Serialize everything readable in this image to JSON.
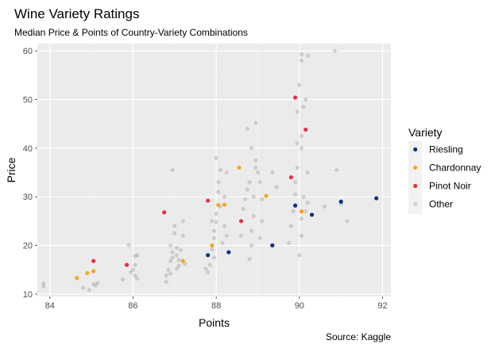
{
  "chart_data": {
    "type": "scatter",
    "title": "Wine Variety Ratings",
    "subtitle": "Median Price & Points of Country-Variety Combinations",
    "xlabel": "Points",
    "ylabel": "Price",
    "caption": "Source: Kaggle",
    "xlim": [
      83.7,
      92.2
    ],
    "ylim": [
      9.5,
      61.5
    ],
    "x_ticks": [
      84,
      86,
      88,
      90,
      92
    ],
    "y_ticks": [
      10,
      20,
      30,
      40,
      50,
      60
    ],
    "grid": true,
    "legend": {
      "title": "Variety",
      "position": "right"
    },
    "series": [
      {
        "name": "Riesling",
        "color": "#00338d",
        "points": [
          [
            87.8,
            18
          ],
          [
            88.3,
            18.6
          ],
          [
            89.35,
            20
          ],
          [
            89.9,
            28.2
          ],
          [
            90.3,
            26.3
          ],
          [
            91.0,
            29
          ],
          [
            91.85,
            29.7
          ]
        ]
      },
      {
        "name": "Chardonnay",
        "color": "#f5a623",
        "points": [
          [
            84.65,
            13.3
          ],
          [
            84.9,
            14.3
          ],
          [
            85.05,
            14.7
          ],
          [
            87.2,
            16.8
          ],
          [
            87.9,
            20
          ],
          [
            88.05,
            28.3
          ],
          [
            88.2,
            28.4
          ],
          [
            88.55,
            36
          ],
          [
            89.2,
            30.2
          ],
          [
            90.05,
            27
          ]
        ]
      },
      {
        "name": "Pinot Noir",
        "color": "#e8303f",
        "points": [
          [
            85.05,
            16.8
          ],
          [
            85.85,
            16
          ],
          [
            86.75,
            26.8
          ],
          [
            87.8,
            29.2
          ],
          [
            88.6,
            25
          ],
          [
            89.8,
            34
          ],
          [
            89.9,
            50.4
          ],
          [
            90.15,
            43.8
          ]
        ]
      },
      {
        "name": "Other",
        "color": "#a6a6a6",
        "points": [
          [
            83.85,
            12.2
          ],
          [
            83.85,
            11.6
          ],
          [
            84.8,
            11.3
          ],
          [
            84.95,
            10.8
          ],
          [
            85.05,
            12.0
          ],
          [
            85.1,
            11.8
          ],
          [
            85.15,
            12.3
          ],
          [
            85.75,
            13.0
          ],
          [
            85.9,
            20.1
          ],
          [
            85.95,
            14.5
          ],
          [
            86.0,
            15.0
          ],
          [
            86.05,
            17.8
          ],
          [
            86.05,
            13.8
          ],
          [
            86.1,
            18.0
          ],
          [
            86.05,
            16.0
          ],
          [
            86.1,
            13.2
          ],
          [
            86.8,
            13.8
          ],
          [
            86.8,
            12.5
          ],
          [
            86.85,
            15.0
          ],
          [
            86.9,
            16.8
          ],
          [
            86.9,
            20.0
          ],
          [
            86.95,
            35.5
          ],
          [
            87.0,
            22.5
          ],
          [
            87.0,
            24.0
          ],
          [
            87.05,
            18.0
          ],
          [
            87.05,
            15.2
          ],
          [
            87.1,
            15.8
          ],
          [
            87.15,
            19.0
          ],
          [
            87.2,
            22.0
          ],
          [
            87.25,
            16.2
          ],
          [
            87.2,
            25.0
          ],
          [
            86.95,
            17.5
          ],
          [
            86.95,
            18.6
          ],
          [
            87.05,
            19.5
          ],
          [
            87.1,
            17.0
          ],
          [
            86.9,
            14.2
          ],
          [
            87.75,
            15.2
          ],
          [
            87.8,
            14.5
          ],
          [
            87.85,
            16.0
          ],
          [
            87.9,
            19.2
          ],
          [
            87.95,
            21.5
          ],
          [
            87.95,
            23.0
          ],
          [
            87.9,
            25.0
          ],
          [
            88.0,
            26.5
          ],
          [
            88.05,
            31.0
          ],
          [
            88.05,
            33.0
          ],
          [
            88.1,
            35.5
          ],
          [
            88.0,
            38.0
          ],
          [
            88.2,
            24.0
          ],
          [
            88.25,
            22.0
          ],
          [
            88.15,
            20.5
          ],
          [
            88.25,
            35.0
          ],
          [
            88.1,
            28.0
          ],
          [
            87.95,
            17.5
          ],
          [
            88.0,
            24.8
          ],
          [
            88.2,
            30.0
          ],
          [
            88.6,
            22.0
          ],
          [
            88.65,
            27.5
          ],
          [
            88.7,
            29.5
          ],
          [
            88.75,
            31.5
          ],
          [
            88.8,
            33.0
          ],
          [
            88.8,
            17.2
          ],
          [
            88.85,
            20.0
          ],
          [
            88.85,
            23.0
          ],
          [
            88.9,
            26.0
          ],
          [
            88.9,
            30.0
          ],
          [
            88.95,
            37.5
          ],
          [
            88.95,
            45.2
          ],
          [
            88.95,
            36.0
          ],
          [
            89.0,
            35.0
          ],
          [
            89.05,
            33.0
          ],
          [
            89.05,
            21.5
          ],
          [
            89.1,
            25.0
          ],
          [
            89.1,
            29.5
          ],
          [
            88.75,
            44.0
          ],
          [
            88.85,
            40.0
          ],
          [
            89.35,
            35.0
          ],
          [
            89.45,
            32.0
          ],
          [
            89.75,
            20.5
          ],
          [
            89.8,
            24.0
          ],
          [
            89.85,
            27.0
          ],
          [
            89.9,
            30.5
          ],
          [
            89.9,
            33.0
          ],
          [
            89.95,
            36.0
          ],
          [
            89.95,
            41.0
          ],
          [
            90.0,
            18.0
          ],
          [
            90.05,
            22.0
          ],
          [
            90.05,
            25.5
          ],
          [
            90.05,
            40.0
          ],
          [
            90.05,
            42.5
          ],
          [
            90.1,
            48.5
          ],
          [
            90.0,
            53.0
          ],
          [
            90.05,
            58.0
          ],
          [
            90.05,
            59.3
          ],
          [
            90.15,
            50.0
          ],
          [
            90.2,
            59.0
          ],
          [
            90.2,
            35.0
          ],
          [
            90.1,
            30.0
          ],
          [
            90.15,
            27.0
          ],
          [
            89.95,
            47.5
          ],
          [
            90.2,
            28.8
          ],
          [
            90.6,
            28.0
          ],
          [
            90.85,
            60.0
          ],
          [
            90.9,
            35.5
          ],
          [
            91.0,
            28.5
          ],
          [
            91.15,
            25.0
          ]
        ]
      }
    ]
  }
}
